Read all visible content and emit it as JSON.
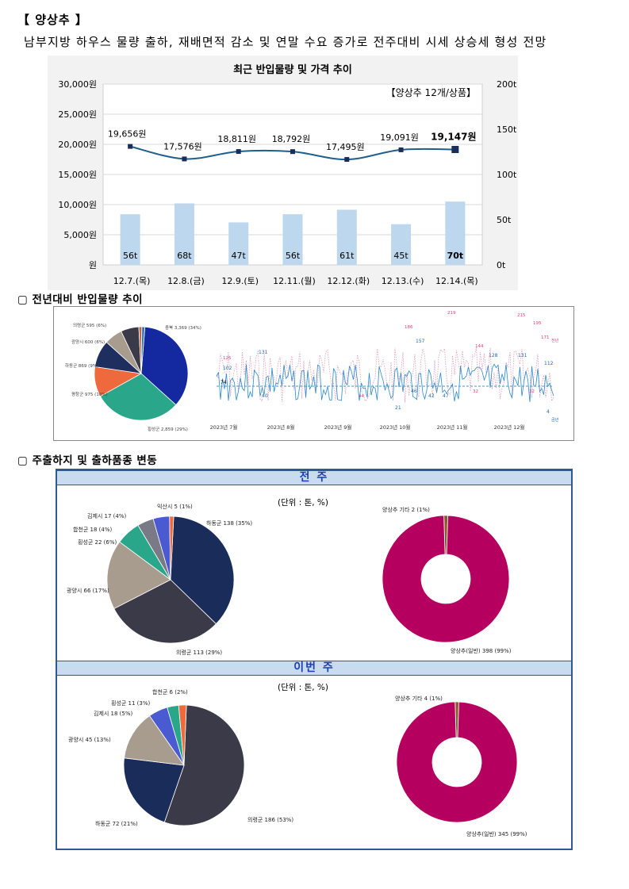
{
  "header": {
    "title": "【 양상추 】",
    "subtitle": "남부지방 하우스 물량 출하, 재배면적 감소 및 연말 수요 증가로 전주대비 시세 상승세 형성 전망"
  },
  "sections": {
    "s2": "▢ 전년대비 반입물량 추이",
    "s3": "▢ 주출하지 및 출하품종 변동"
  },
  "colors": {
    "price_line": "#1f5f8b",
    "bar": "#bdd7ee",
    "band": "#c9dbef",
    "donut": "#b5005f"
  },
  "chart_data": [
    {
      "type": "bar",
      "title": "최근 반입물량 및 가격 추이",
      "annotation": "【양상추 12개/상품】",
      "categories": [
        "12.7.(목)",
        "12.8.(금)",
        "12.9.(토)",
        "12.11.(월)",
        "12.12.(화)",
        "12.13.(수)",
        "12.14.(목)"
      ],
      "series": [
        {
          "kind": "line",
          "axis": "left",
          "values": [
            19656,
            17576,
            18811,
            18792,
            17495,
            19091,
            19147
          ],
          "labels": [
            "19,656원",
            "17,576원",
            "18,811원",
            "18,792원",
            "17,495원",
            "19,091원",
            "19,147원"
          ]
        },
        {
          "kind": "bar",
          "axis": "right",
          "values": [
            56,
            68,
            47,
            56,
            61,
            45,
            70
          ],
          "labels": [
            "56t",
            "68t",
            "47t",
            "56t",
            "61t",
            "45t",
            "70t"
          ]
        }
      ],
      "y_left": {
        "range": [
          0,
          30000
        ],
        "ticks": [
          "원",
          "5,000원",
          "10,000원",
          "15,000원",
          "20,000원",
          "25,000원",
          "30,000원"
        ]
      },
      "y_right": {
        "range": [
          0,
          200
        ],
        "ticks": [
          "0t",
          "50t",
          "100t",
          "150t",
          "200t"
        ]
      },
      "grid": true
    },
    {
      "type": "pie",
      "labels": [
        "충북 3,369 (34%)",
        "횡성군 2,859 (29%)",
        "평창군 975 (10%)",
        "하동군 869 (9%)",
        "광양시 600 (6%)",
        "의령군 595 (6%)",
        "기타 (1%)",
        "여주시"
      ],
      "values": [
        34,
        29,
        10,
        9,
        6,
        6,
        1,
        1
      ],
      "colors": [
        "#1428a0",
        "#2aa78a",
        "#ee6a3c",
        "#1e2e5e",
        "#a89c8e",
        "#3a3a48",
        "#c8643c",
        "#2878c8"
      ]
    },
    {
      "type": "line",
      "x_ticks": [
        "2023년 7월",
        "2023년 8월",
        "2023년 9월",
        "2023년 10월",
        "2023년 11월",
        "2023년 12월"
      ],
      "labels_current": [
        "102",
        "131",
        "40",
        "157",
        "21",
        "46",
        "47",
        "42",
        "128",
        "131",
        "112",
        "4"
      ],
      "labels_prev": [
        "125",
        "186",
        "219",
        "44",
        "144",
        "215",
        "195",
        "171",
        "32",
        "32"
      ],
      "avg_label": "74",
      "legend": [
        "전년",
        "금년"
      ]
    },
    {
      "type": "pie",
      "group": "전 주",
      "unit": "(단위 : 톤, %)",
      "labels": [
        "하동군 138 (35%)",
        "의령군 113 (29%)",
        "광양시 66 (17%)",
        "횡성군 22 (6%)",
        "합천군 18 (4%)",
        "김제시 17 (4%)",
        "익산시 5 (1%)"
      ],
      "values": [
        35,
        29,
        17,
        6,
        4,
        4,
        1
      ],
      "colors": [
        "#1a2c5a",
        "#3a3a48",
        "#a89c8e",
        "#2aa78a",
        "#7a7a86",
        "#4a5ad0",
        "#ee6a3c"
      ]
    },
    {
      "type": "pie",
      "group": "전 주",
      "labels": [
        "양상추 기타 2 (1%)",
        "양상추(일반) 398 (99%)"
      ],
      "values": [
        1,
        99
      ]
    },
    {
      "type": "pie",
      "group": "이번 주",
      "unit": "(단위 : 톤, %)",
      "labels": [
        "의령군 186 (53%)",
        "하동군 72 (21%)",
        "광양시 45 (13%)",
        "김제시 18 (5%)",
        "횡성군 11 (3%)",
        "합천군 6 (2%)"
      ],
      "values": [
        53,
        21,
        13,
        5,
        3,
        2
      ],
      "colors": [
        "#3a3a48",
        "#1a2c5a",
        "#a89c8e",
        "#4a5ad0",
        "#2aa78a",
        "#ee6a3c"
      ]
    },
    {
      "type": "pie",
      "group": "이번 주",
      "labels": [
        "양상추 기타 4 (1%)",
        "양상추(일반) 345 (99%)"
      ],
      "values": [
        1,
        99
      ]
    }
  ]
}
